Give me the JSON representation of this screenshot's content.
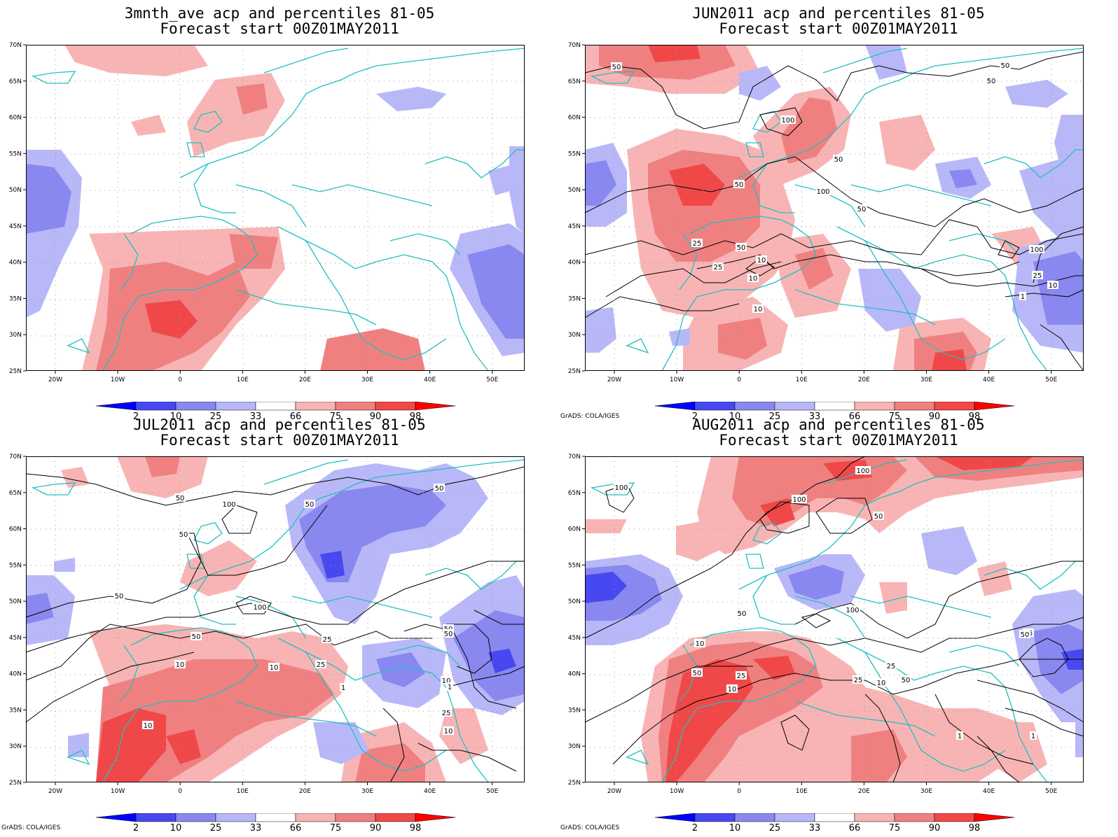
{
  "panels": [
    {
      "title_line1": "3mnth_ave acp and percentiles 81-05",
      "title_line2": "Forecast start 00Z01MAY2011",
      "credit": ""
    },
    {
      "title_line1": "JUN2011 acp and percentiles 81-05",
      "title_line2": "Forecast start 00Z01MAY2011",
      "credit": "GrADS: COLA/IGES"
    },
    {
      "title_line1": "JUL2011 acp and percentiles 81-05",
      "title_line2": "Forecast start 00Z01MAY2011",
      "credit": "GrADS: COLA/IGES"
    },
    {
      "title_line1": "AUG2011 acp and percentiles 81-05",
      "title_line2": "Forecast start 00Z01MAY2011",
      "credit": "GrADS: COLA/IGES"
    }
  ],
  "map_axes": {
    "lat_labels": [
      "70N",
      "65N",
      "60N",
      "55N",
      "50N",
      "45N",
      "40N",
      "35N",
      "30N",
      "25N"
    ],
    "lon_labels": [
      "20W",
      "10W",
      "0",
      "10E",
      "20E",
      "30E",
      "40E",
      "50E"
    ]
  },
  "colorbar": {
    "labels": [
      "2",
      "10",
      "25",
      "33",
      "66",
      "75",
      "90",
      "98"
    ],
    "colors": [
      "#0000ff",
      "#4848f0",
      "#8888f0",
      "#b8b8f8",
      "#ffffff",
      "#f8b4b4",
      "#f08080",
      "#f04848",
      "#ff0000"
    ]
  },
  "shading_colors": {
    "blue_light": "#b8b8f8",
    "blue_mid": "#8888f0",
    "blue_dark": "#4848f0",
    "red_light": "#f8b4b4",
    "red_mid": "#f08080",
    "red_dark": "#f04848"
  },
  "coastline_color": "#20c0c0",
  "contour_labels": [
    [],
    [
      "50",
      "100",
      "50",
      "50",
      "100",
      "50",
      "50",
      "50",
      "25",
      "10",
      "50",
      "25",
      "10",
      "10",
      "100",
      "25",
      "10",
      "1"
    ],
    [
      "50",
      "100",
      "50",
      "50",
      "50",
      "50",
      "100",
      "50",
      "25",
      "10",
      "25",
      "10",
      "10",
      "50",
      "1",
      "10",
      "25",
      "10",
      "50",
      "1"
    ],
    [
      "100",
      "100",
      "100",
      "50",
      "50",
      "100",
      "50",
      "10",
      "25",
      "10",
      "25",
      "10",
      "25",
      "50",
      "1",
      "25",
      "50",
      "1"
    ]
  ]
}
